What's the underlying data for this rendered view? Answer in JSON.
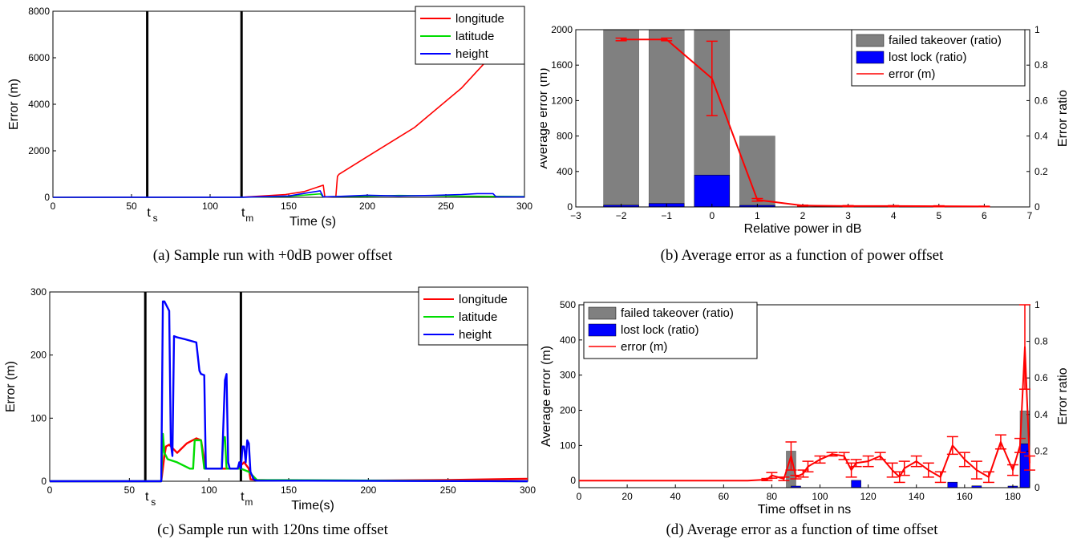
{
  "captions": {
    "a": "(a)  Sample run with +0dB power offset",
    "b": "(b)  Average error as a function of power offset",
    "c": "(c)  Sample run with 120ns time offset",
    "d": "(d)  Average error as a function of time offset"
  },
  "colors": {
    "longitude": "#ff0000",
    "latitude": "#00dd00",
    "height": "#0000ff",
    "failed": "#808080",
    "lost": "#0000ff",
    "error": "#ff0000",
    "marker": "#000000"
  },
  "chart_data": [
    {
      "id": "a",
      "type": "line",
      "title": "",
      "xlabel": "Time (s)",
      "ylabel": "Error (m)",
      "xlim": [
        0,
        300
      ],
      "ylim": [
        0,
        8000
      ],
      "xticks": [
        0,
        50,
        100,
        150,
        200,
        250,
        300
      ],
      "yticks": [
        0,
        2000,
        4000,
        6000,
        8000
      ],
      "markers": [
        {
          "x": 60,
          "label": "t",
          "sub": "s"
        },
        {
          "x": 120,
          "label": "t",
          "sub": "m"
        }
      ],
      "legend": "top-right",
      "series": [
        {
          "name": "longitude",
          "x": [
            0,
            120,
            148,
            160,
            172,
            173,
            180,
            181,
            182,
            200,
            230,
            260,
            290,
            300
          ],
          "y": [
            0,
            5,
            120,
            250,
            520,
            10,
            30,
            900,
            990,
            1750,
            3000,
            4700,
            6900,
            8000
          ]
        },
        {
          "name": "latitude",
          "x": [
            0,
            120,
            150,
            170,
            172,
            180,
            200,
            220,
            240,
            260,
            280,
            300
          ],
          "y": [
            0,
            5,
            40,
            150,
            20,
            30,
            50,
            80,
            70,
            50,
            40,
            30
          ]
        },
        {
          "name": "height",
          "x": [
            0,
            120,
            150,
            170,
            172,
            180,
            200,
            220,
            240,
            260,
            270,
            280,
            282,
            300
          ],
          "y": [
            0,
            5,
            60,
            280,
            20,
            30,
            90,
            60,
            80,
            120,
            160,
            160,
            20,
            20
          ]
        }
      ]
    },
    {
      "id": "b",
      "type": "bar",
      "title": "",
      "xlabel": "Relative power in dB",
      "ylabel": "Average error (m)",
      "y2label": "Error ratio",
      "xlim": [
        -3,
        7
      ],
      "ylim": [
        0,
        2000
      ],
      "y2lim": [
        0,
        1
      ],
      "xticks": [
        -3,
        -2,
        -1,
        0,
        1,
        2,
        3,
        4,
        5,
        6,
        7
      ],
      "yticks": [
        0,
        400,
        800,
        1200,
        1600,
        2000
      ],
      "y2ticks": [
        0,
        0.2,
        0.4,
        0.6,
        0.8,
        1
      ],
      "legend": "top-right",
      "series": [
        {
          "name": "failed takeover (ratio)",
          "axis": "right",
          "x": [
            -2,
            -1,
            0,
            1
          ],
          "values": [
            1,
            1,
            1,
            0.4
          ]
        },
        {
          "name": "lost lock (ratio)",
          "axis": "right",
          "x": [
            -2,
            -1,
            0,
            1
          ],
          "values": [
            0.01,
            0.02,
            0.18,
            0
          ]
        },
        {
          "name": "error (m)",
          "axis": "left",
          "x": [
            -2,
            -1,
            0,
            1,
            2,
            3,
            4,
            5,
            6
          ],
          "values": [
            1890,
            1890,
            1450,
            80,
            15,
            10,
            10,
            8,
            5
          ],
          "err": [
            15,
            15,
            420,
            15,
            5,
            5,
            5,
            5,
            3
          ]
        }
      ]
    },
    {
      "id": "c",
      "type": "line",
      "title": "",
      "xlabel": "Time(s)",
      "ylabel": "Error (m)",
      "xlim": [
        0,
        300
      ],
      "ylim": [
        0,
        300
      ],
      "xticks": [
        0,
        50,
        100,
        150,
        200,
        250,
        300
      ],
      "yticks": [
        0,
        100,
        200,
        300
      ],
      "markers": [
        {
          "x": 60,
          "label": "t",
          "sub": "s"
        },
        {
          "x": 120,
          "label": "t",
          "sub": "m"
        }
      ],
      "legend": "top-right",
      "series": [
        {
          "name": "longitude",
          "x": [
            0,
            60,
            70,
            72,
            73,
            75,
            80,
            86,
            92,
            95,
            98,
            100,
            105,
            110,
            112,
            118,
            120,
            122,
            125,
            126,
            130,
            150,
            200,
            250,
            300
          ],
          "y": [
            0,
            0,
            0,
            40,
            55,
            58,
            45,
            60,
            68,
            65,
            20,
            20,
            20,
            20,
            20,
            20,
            25,
            30,
            20,
            3,
            2,
            1,
            1,
            2,
            4
          ]
        },
        {
          "name": "latitude",
          "x": [
            0,
            60,
            70,
            71,
            72,
            74,
            80,
            88,
            90,
            91,
            95,
            97,
            98,
            105,
            108,
            109,
            110,
            111,
            118,
            120,
            125,
            130,
            300
          ],
          "y": [
            0,
            0,
            0,
            75,
            45,
            35,
            30,
            20,
            20,
            65,
            65,
            20,
            20,
            20,
            20,
            70,
            70,
            20,
            20,
            20,
            15,
            2,
            0
          ]
        },
        {
          "name": "height",
          "x": [
            0,
            60,
            70,
            71,
            72,
            75,
            76,
            77,
            78,
            80,
            85,
            92,
            94,
            95,
            97,
            98,
            105,
            108,
            110,
            111,
            112,
            113,
            115,
            118,
            119,
            120,
            121,
            122,
            123,
            124,
            125,
            126,
            128,
            130,
            300
          ],
          "y": [
            0,
            0,
            0,
            285,
            285,
            270,
            60,
            40,
            230,
            228,
            225,
            220,
            175,
            170,
            168,
            20,
            20,
            20,
            160,
            170,
            30,
            20,
            20,
            20,
            30,
            20,
            55,
            55,
            30,
            65,
            60,
            15,
            3,
            1,
            0
          ]
        }
      ]
    },
    {
      "id": "d",
      "type": "bar",
      "title": "",
      "xlabel": "Time offset in ns",
      "ylabel": "Average error (m)",
      "y2label": "Error ratio",
      "xlim": [
        0,
        187
      ],
      "ylim": [
        -20,
        500
      ],
      "y2lim": [
        0,
        1
      ],
      "xticks": [
        0,
        20,
        40,
        60,
        80,
        100,
        120,
        140,
        160,
        180
      ],
      "yticks": [
        0,
        100,
        200,
        300,
        400,
        500
      ],
      "y2ticks": [
        0,
        0.2,
        0.4,
        0.6,
        0.8,
        1
      ],
      "legend": "top-left",
      "series": [
        {
          "name": "failed takeover (ratio)",
          "axis": "right",
          "x": [
            88,
            185
          ],
          "values": [
            0.2,
            0.42
          ]
        },
        {
          "name": "lost lock (ratio)",
          "axis": "right",
          "x": [
            90,
            115,
            155,
            165,
            180,
            185
          ],
          "values": [
            0.005,
            0.04,
            0.03,
            0.01,
            0.005,
            0.24
          ]
        },
        {
          "name": "error (m)",
          "axis": "left",
          "x": [
            0,
            10,
            20,
            30,
            40,
            50,
            60,
            70,
            78,
            80,
            85,
            88,
            90,
            93,
            95,
            100,
            105,
            110,
            113,
            115,
            120,
            125,
            130,
            133,
            135,
            140,
            145,
            150,
            155,
            160,
            165,
            170,
            175,
            180,
            183,
            185,
            187
          ],
          "values": [
            0,
            0,
            0,
            0,
            0,
            0,
            0,
            0,
            3,
            15,
            5,
            70,
            10,
            20,
            40,
            60,
            75,
            70,
            30,
            50,
            55,
            70,
            30,
            10,
            35,
            55,
            30,
            10,
            100,
            60,
            30,
            10,
            110,
            30,
            100,
            380,
            50
          ],
          "err": [
            0,
            0,
            0,
            0,
            0,
            0,
            0,
            0,
            3,
            8,
            5,
            40,
            5,
            10,
            15,
            10,
            5,
            10,
            20,
            10,
            15,
            10,
            20,
            15,
            20,
            15,
            20,
            15,
            25,
            20,
            25,
            15,
            20,
            15,
            20,
            120,
            20
          ]
        }
      ]
    }
  ]
}
